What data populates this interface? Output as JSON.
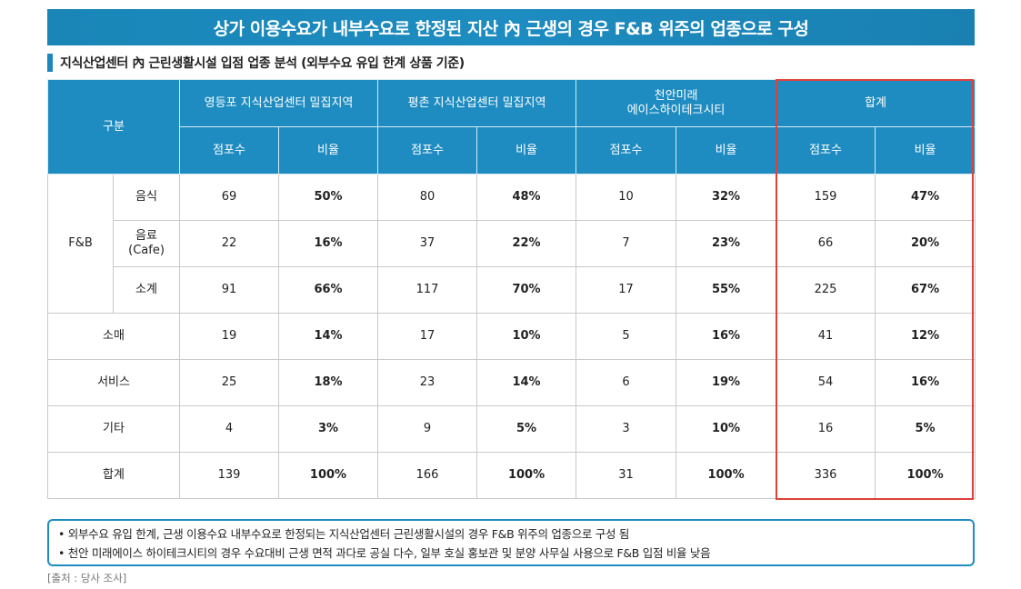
{
  "banner": "상가 이용수요가 내부수요로 한정된 지산 內 근생의 경우 F&B 위주의 업종으로 구성",
  "subtitle": "지식산업센터 內 근린생활시설 입점 업종 분석 (외부수요 유입 한계 상품 기준)",
  "header": {
    "category": "구분",
    "groups": [
      "영등포 지식산업센터 밀집지역",
      "평촌 지식산업센터 밀집지역",
      "천안미래",
      "에이스하이테크시티",
      "합계"
    ],
    "count_label": "점포수",
    "ratio_label": "비율"
  },
  "rows": {
    "fb_group": "F&B",
    "food": {
      "label": "음식",
      "values": [
        "69",
        "50%",
        "80",
        "48%",
        "10",
        "32%",
        "159",
        "47%"
      ]
    },
    "drink": {
      "label1": "음료",
      "label2": "(Cafe)",
      "values": [
        "22",
        "16%",
        "37",
        "22%",
        "7",
        "23%",
        "66",
        "20%"
      ]
    },
    "subtotal": {
      "label": "소계",
      "values": [
        "91",
        "66%",
        "117",
        "70%",
        "17",
        "55%",
        "225",
        "67%"
      ]
    },
    "retail": {
      "label": "소매",
      "values": [
        "19",
        "14%",
        "17",
        "10%",
        "5",
        "16%",
        "41",
        "12%"
      ]
    },
    "service": {
      "label": "서비스",
      "values": [
        "25",
        "18%",
        "23",
        "14%",
        "6",
        "19%",
        "54",
        "16%"
      ]
    },
    "other": {
      "label": "기타",
      "values": [
        "4",
        "3%",
        "9",
        "5%",
        "3",
        "10%",
        "16",
        "5%"
      ]
    },
    "total": {
      "label": "합계",
      "values": [
        "139",
        "100%",
        "166",
        "100%",
        "31",
        "100%",
        "336",
        "100%"
      ]
    }
  },
  "notes": [
    "• 외부수요 유입 한계, 근생 이용수요 내부수요로 한정되는 지식산업센터 근린생활시설의 경우 F&B 위주의 업종으로 구성 됨",
    "• 천안 미래에이스 하이테크시티의 경우 수요대비 근생 면적 과다로 공실 다수, 일부 호실 홍보관 및 분양 사무실 사용으로 F&B 입점 비율 낮음"
  ],
  "source": "[출처 : 당사 조사]"
}
